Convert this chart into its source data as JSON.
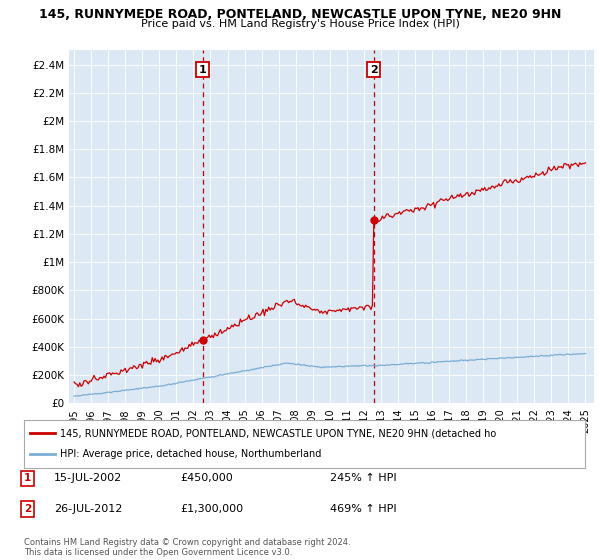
{
  "title_line1": "145, RUNNYMEDE ROAD, PONTELAND, NEWCASTLE UPON TYNE, NE20 9HN",
  "title_line2": "Price paid vs. HM Land Registry's House Price Index (HPI)",
  "ylim": [
    0,
    2500000
  ],
  "yticks": [
    0,
    200000,
    400000,
    600000,
    800000,
    1000000,
    1200000,
    1400000,
    1600000,
    1800000,
    2000000,
    2200000,
    2400000
  ],
  "ytick_labels": [
    "£0",
    "£200K",
    "£400K",
    "£600K",
    "£800K",
    "£1M",
    "£1.2M",
    "£1.4M",
    "£1.6M",
    "£1.8M",
    "£2M",
    "£2.2M",
    "£2.4M"
  ],
  "xlim_start": 1994.7,
  "xlim_end": 2025.5,
  "xtick_years": [
    1995,
    1996,
    1997,
    1998,
    1999,
    2000,
    2001,
    2002,
    2003,
    2004,
    2005,
    2006,
    2007,
    2008,
    2009,
    2010,
    2011,
    2012,
    2013,
    2014,
    2015,
    2016,
    2017,
    2018,
    2019,
    2020,
    2021,
    2022,
    2023,
    2024,
    2025
  ],
  "bg_color": "#dce9f5",
  "fig_bg_color": "#ffffff",
  "sale1_x": 2002.54,
  "sale1_y": 450000,
  "sale2_x": 2012.57,
  "sale2_y": 1300000,
  "line1_color": "#cc0000",
  "line2_color": "#7aadd4",
  "dashed_color": "#cc0000",
  "legend_line1": "145, RUNNYMEDE ROAD, PONTELAND, NEWCASTLE UPON TYNE, NE20 9HN (detached ho",
  "legend_line2": "HPI: Average price, detached house, Northumberland",
  "annotation1_date": "15-JUL-2002",
  "annotation1_price": "£450,000",
  "annotation1_hpi": "245% ↑ HPI",
  "annotation2_date": "26-JUL-2012",
  "annotation2_price": "£1,300,000",
  "annotation2_hpi": "469% ↑ HPI",
  "footer": "Contains HM Land Registry data © Crown copyright and database right 2024.\nThis data is licensed under the Open Government Licence v3.0."
}
